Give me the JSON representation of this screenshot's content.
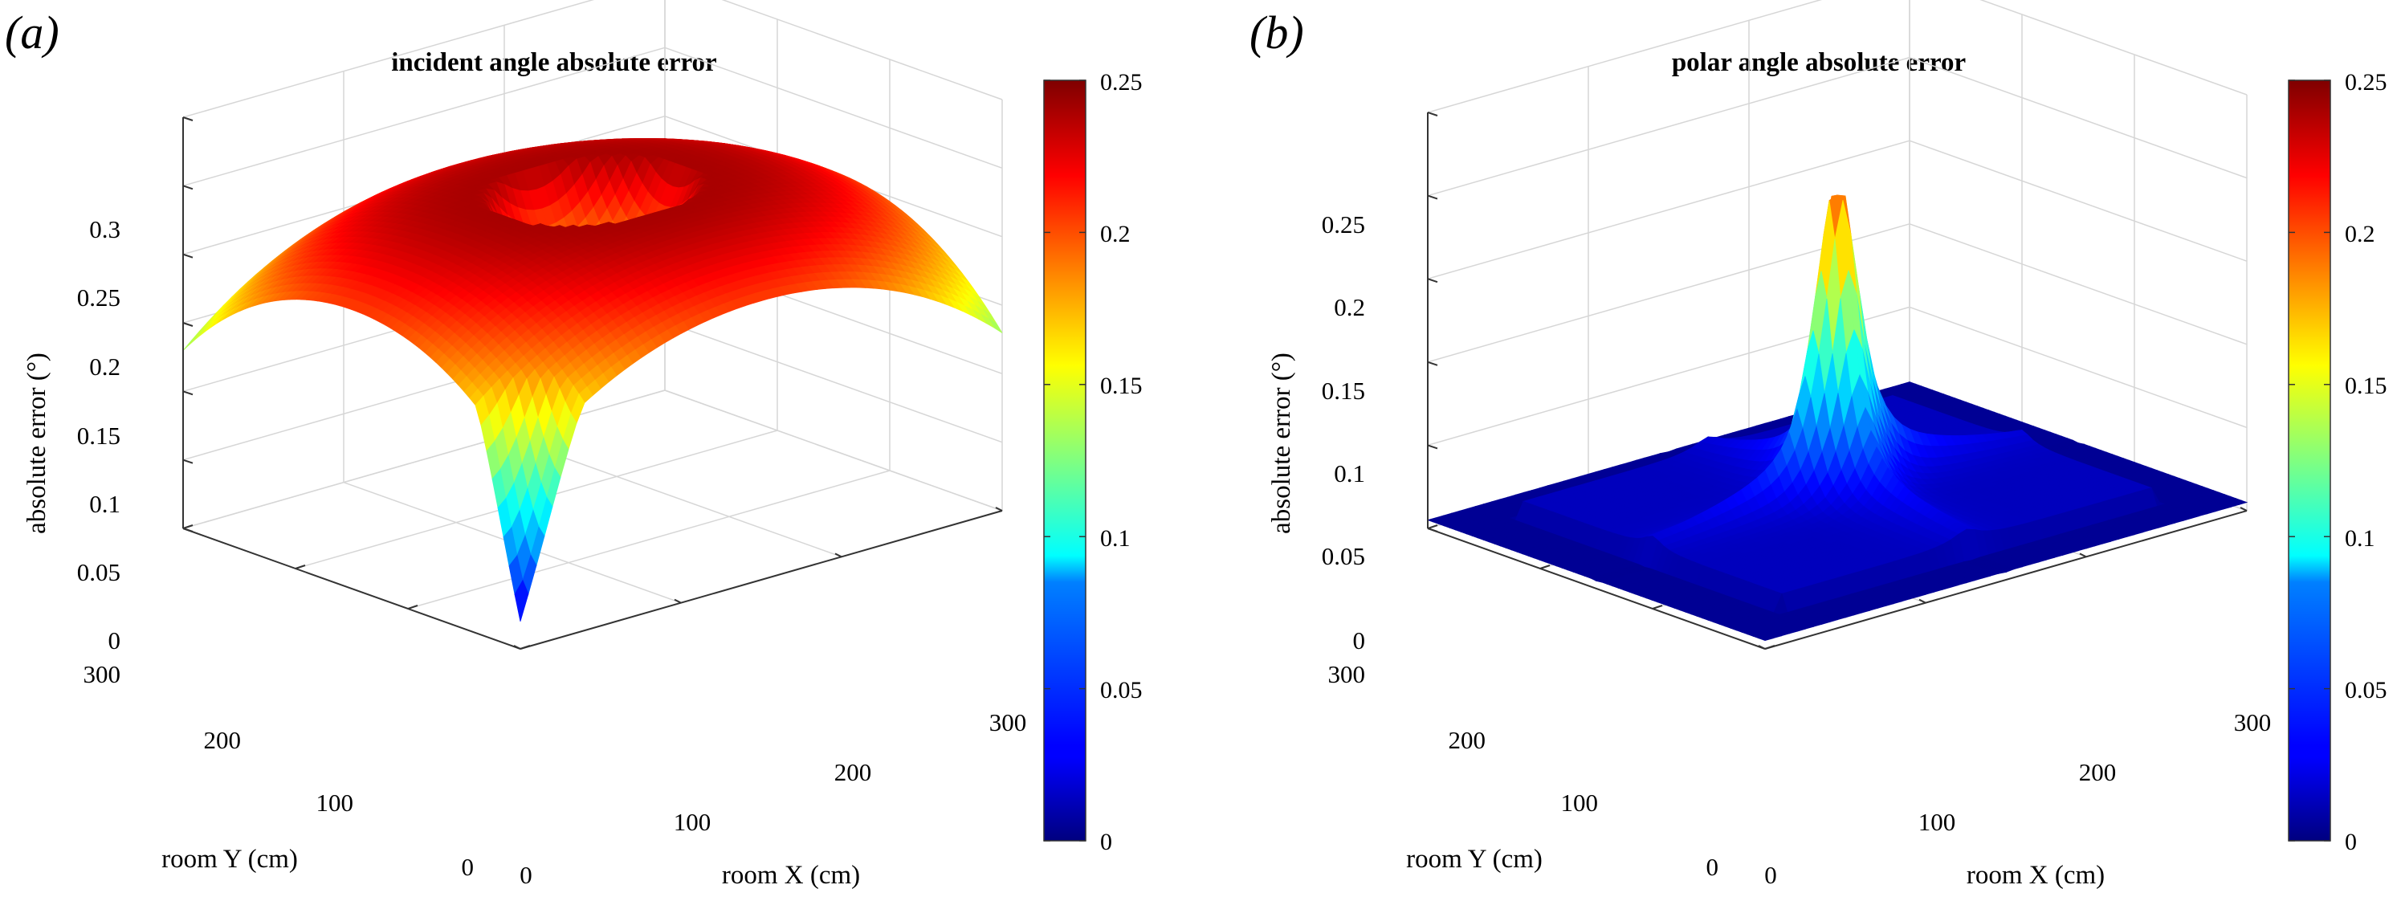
{
  "chart_data": [
    {
      "type": "surface",
      "panel_label": "(a)",
      "title": "incident angle absolute error",
      "xlabel": "room X (cm)",
      "ylabel": "room Y (cm)",
      "zlabel": "absolute error (°)",
      "x_ticks": [
        "0",
        "100",
        "200",
        "300"
      ],
      "y_ticks": [
        "0",
        "100",
        "200",
        "300"
      ],
      "z_ticks": [
        "0",
        "0.05",
        "0.1",
        "0.15",
        "0.2",
        "0.25",
        "0.3"
      ],
      "xlim": [
        0,
        300
      ],
      "ylim": [
        0,
        300
      ],
      "zlim": [
        0,
        0.3
      ],
      "colormap": "jet",
      "clim": [
        0,
        0.25
      ],
      "colorbar_ticks": [
        "0",
        "0.05",
        "0.1",
        "0.15",
        "0.2",
        "0.25"
      ],
      "description_values": {
        "corner_error": 0.13,
        "ring_peak_error": 0.24,
        "ring_radius_cm": 55,
        "center_dip_error": 0.16,
        "near_origin_minimum": 0.02
      }
    },
    {
      "type": "surface",
      "panel_label": "(b)",
      "title": "polar angle absolute error",
      "xlabel": "room X (cm)",
      "ylabel": "room Y (cm)",
      "zlabel": "absolute error (°)",
      "x_ticks": [
        "0",
        "100",
        "200",
        "300"
      ],
      "y_ticks": [
        "0",
        "100",
        "200",
        "300"
      ],
      "z_ticks": [
        "0",
        "0.05",
        "0.1",
        "0.15",
        "0.2",
        "0.25"
      ],
      "xlim": [
        0,
        300
      ],
      "ylim": [
        0,
        300
      ],
      "zlim": [
        0,
        0.25
      ],
      "colormap": "jet",
      "clim": [
        0,
        0.25
      ],
      "colorbar_ticks": [
        "0",
        "0.05",
        "0.1",
        "0.15",
        "0.2",
        "0.25"
      ],
      "description_values": {
        "floor_error": 0.005,
        "plateau_error": 0.015,
        "peak_error": 0.195,
        "peak_center_cm": [
          150,
          150
        ]
      }
    }
  ]
}
